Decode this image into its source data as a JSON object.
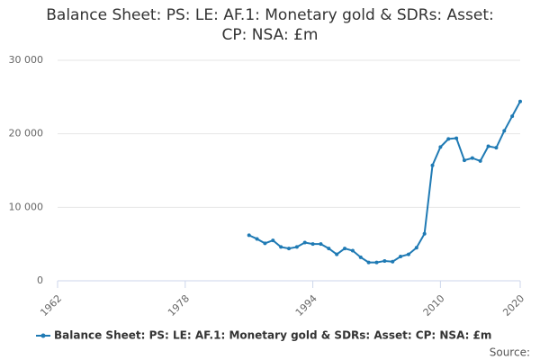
{
  "chart_data": {
    "type": "line",
    "title": "Balance Sheet: PS: LE: AF.1: Monetary gold & SDRs: Asset: CP: NSA: £m",
    "x": [
      1986,
      1987,
      1988,
      1989,
      1990,
      1991,
      1992,
      1993,
      1994,
      1995,
      1996,
      1997,
      1998,
      1999,
      2000,
      2001,
      2002,
      2003,
      2004,
      2005,
      2006,
      2007,
      2008,
      2009,
      2010,
      2011,
      2012,
      2013,
      2014,
      2015,
      2016,
      2017,
      2018,
      2019,
      2020
    ],
    "series": [
      {
        "name": "Balance Sheet: PS: LE: AF.1: Monetary gold & SDRs: Asset: CP: NSA: £m",
        "color": "#1f7ab4",
        "values": [
          6200,
          5700,
          5100,
          5500,
          4600,
          4400,
          4600,
          5200,
          5000,
          5000,
          4400,
          3600,
          4400,
          4100,
          3200,
          2500,
          2500,
          2700,
          2600,
          3300,
          3600,
          4500,
          6400,
          15700,
          18200,
          19300,
          19400,
          16400,
          16700,
          16300,
          18300,
          18100,
          20400,
          22400,
          24400
        ]
      }
    ],
    "xlim": [
      1962,
      2020
    ],
    "xticks": [
      1962,
      1978,
      1994,
      2010,
      2020
    ],
    "ylim": [
      0,
      30000
    ],
    "yticks": [
      0,
      {
        "value": 10000,
        "label": "10 000"
      },
      {
        "value": 20000,
        "label": "20 000"
      },
      {
        "value": 30000,
        "label": "30 000"
      }
    ],
    "grid": true,
    "source": "Source:"
  }
}
